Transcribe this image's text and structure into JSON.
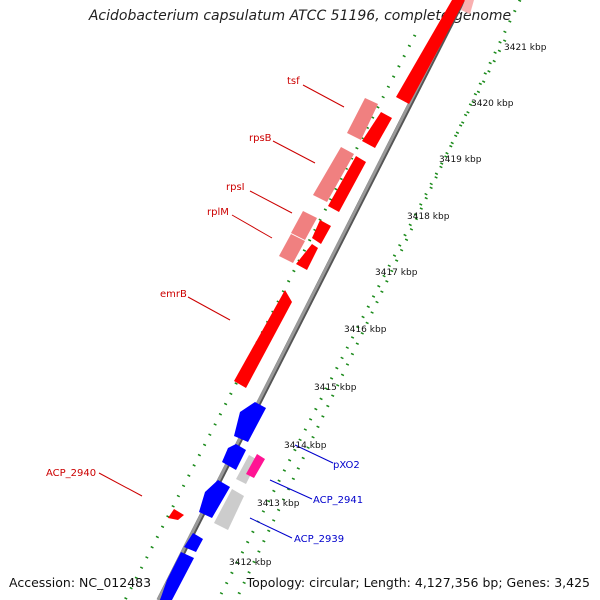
{
  "title": "Acidobacterium capsulatum ATCC 51196, complete genome",
  "accession": "Accession: NC_012483",
  "topology": "Topology: circular; Length: 4,127,356 bp; Genes: 3,425",
  "ticks": [
    "3421 kbp",
    "3420 kbp",
    "3419 kbp",
    "3418 kbp",
    "3417 kbp",
    "3416 kbp",
    "3415 kbp",
    "3414 kbp",
    "3413 kbp",
    "3412 kbp"
  ],
  "gene_labels": {
    "tsf": "tsf",
    "rpsB": "rpsB",
    "rpsI": "rpsI",
    "rplM": "rplM",
    "emrB": "emrB",
    "acp2940": "ACP_2940",
    "pxo2": "pXO2",
    "acp2941": "ACP_2941",
    "acp2939": "ACP_2939"
  },
  "colors": {
    "forward_gene": "#ff0000",
    "forward_gene_light": "#f08080",
    "reverse_gene": "#0000ff",
    "pseudo_gene": "#cccccc",
    "other_feature": "#ff1493",
    "backbone": "#808080",
    "dots": "#008000",
    "label_red": "#cc0000",
    "label_blue": "#0000cc"
  }
}
